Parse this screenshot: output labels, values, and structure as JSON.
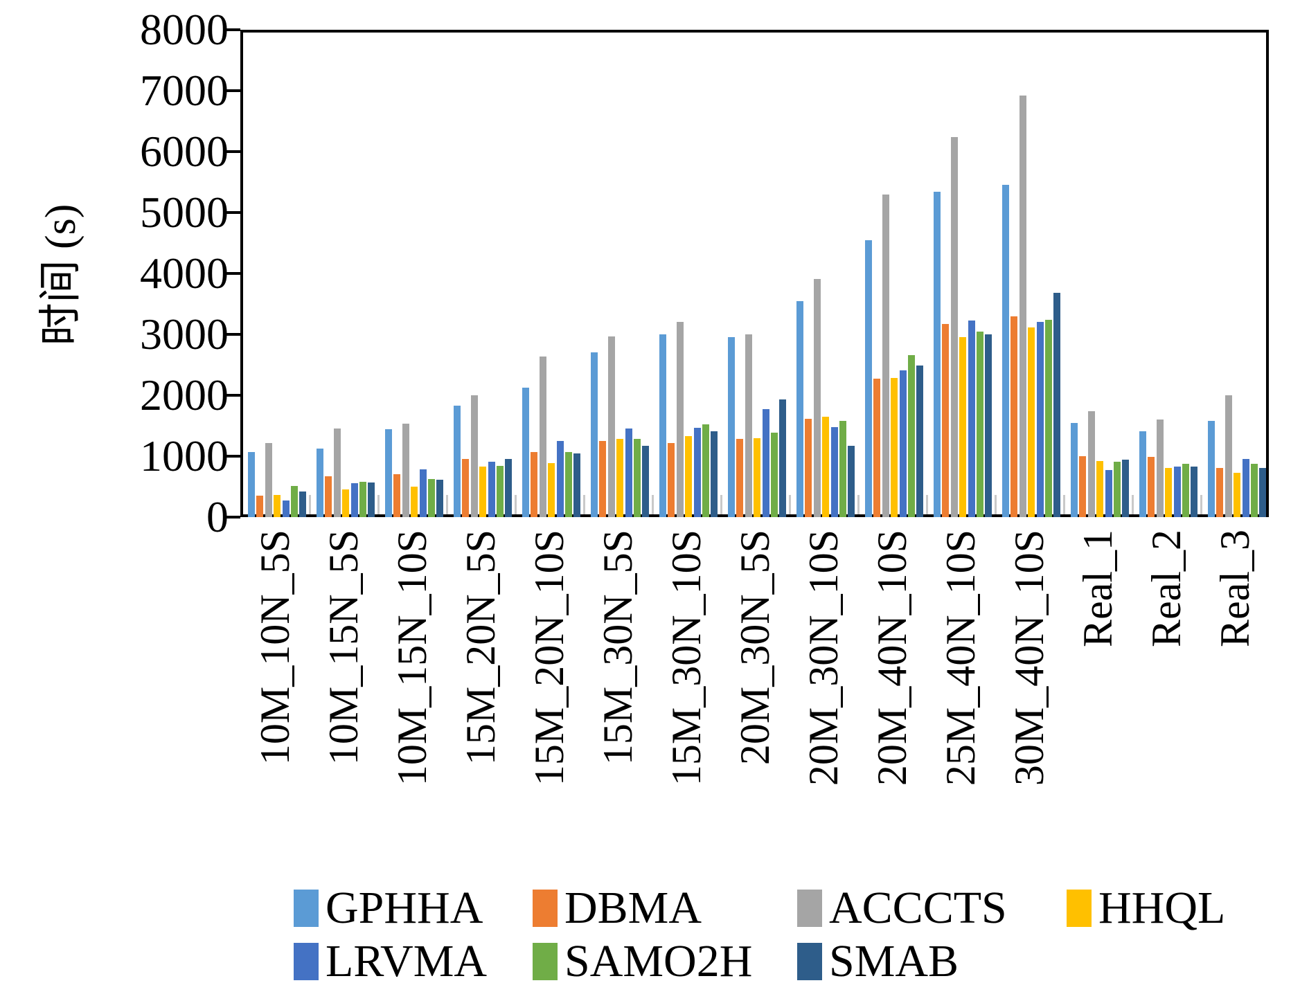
{
  "chart_data": {
    "type": "bar",
    "title": "",
    "xlabel": "",
    "ylabel": "时间 (s)",
    "ylim": [
      0,
      8000
    ],
    "ytick_step": 1000,
    "yticks": [
      "0",
      "1000",
      "2000",
      "3000",
      "4000",
      "5000",
      "6000",
      "7000",
      "8000"
    ],
    "grid": false,
    "legend_position": "bottom",
    "categories": [
      "10M_10N_5S",
      "10M_15N_5S",
      "10M_15N_10S",
      "15M_20N_5S",
      "15M_20N_10S",
      "15M_30N_5S",
      "15M_30N_10S",
      "20M_30N_5S",
      "20M_30N_10S",
      "20M_40N_10S",
      "25M_40N_10S",
      "30M_40N_10S",
      "Real_1",
      "Real_2",
      "Real_3"
    ],
    "series": [
      {
        "name": "GPHHA",
        "color": "#5B9BD5",
        "values": [
          1070,
          1130,
          1440,
          1830,
          2120,
          2710,
          3000,
          2950,
          3550,
          4550,
          5345,
          5460,
          1545,
          1405,
          1585
        ]
      },
      {
        "name": "DBMA",
        "color": "#ED7D31",
        "values": [
          350,
          670,
          700,
          960,
          1065,
          1250,
          1220,
          1285,
          1615,
          2270,
          3175,
          3300,
          1000,
          990,
          805
        ]
      },
      {
        "name": "ACCCTS",
        "color": "#A5A5A5",
        "values": [
          1220,
          1450,
          1535,
          2000,
          2640,
          2970,
          3200,
          3000,
          3910,
          5295,
          6235,
          6915,
          1735,
          1600,
          2000
        ]
      },
      {
        "name": "HHQL",
        "color": "#FFC000",
        "values": [
          360,
          450,
          500,
          830,
          890,
          1280,
          1330,
          1290,
          1650,
          2285,
          2950,
          3110,
          915,
          810,
          730
        ]
      },
      {
        "name": "LRVMA",
        "color": "#4472C4",
        "values": [
          270,
          560,
          780,
          910,
          1250,
          1460,
          1470,
          1775,
          1480,
          2410,
          3230,
          3210,
          770,
          835,
          950
        ]
      },
      {
        "name": "SAMO2H",
        "color": "#70AD47",
        "values": [
          515,
          580,
          620,
          845,
          1065,
          1280,
          1520,
          1385,
          1575,
          2655,
          3040,
          3240,
          905,
          875,
          875
        ]
      },
      {
        "name": "SMAB",
        "color": "#2E5D8A",
        "values": [
          420,
          570,
          615,
          950,
          1045,
          1165,
          1405,
          1935,
          1165,
          2490,
          2995,
          3685,
          945,
          835,
          805
        ]
      }
    ]
  }
}
